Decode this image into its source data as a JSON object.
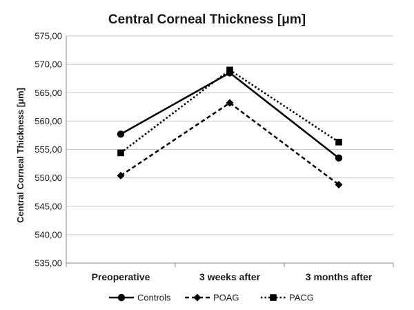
{
  "chart_data": {
    "type": "line",
    "title": "Central Corneal Thickness [μm]",
    "xlabel": "",
    "ylabel": "Central Corneal Thickness [μm]",
    "categories": [
      "Preoperative",
      "3 weeks after",
      "3 months after"
    ],
    "ylim": [
      535,
      575
    ],
    "yticks": [
      "535,00",
      "540,00",
      "545,00",
      "550,00",
      "555,00",
      "560,00",
      "565,00",
      "570,00",
      "575,00"
    ],
    "grid": true,
    "legend_position": "bottom",
    "series": [
      {
        "name": "Controls",
        "values": [
          557.7,
          568.5,
          553.5
        ],
        "marker": "circle",
        "dash": "solid"
      },
      {
        "name": "POAG",
        "values": [
          550.4,
          563.2,
          548.8
        ],
        "marker": "diamond",
        "dash": "dashed"
      },
      {
        "name": "PACG",
        "values": [
          554.4,
          569.0,
          556.3
        ],
        "marker": "square",
        "dash": "dotted"
      }
    ]
  }
}
